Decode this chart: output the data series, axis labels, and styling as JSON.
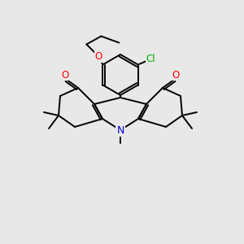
{
  "bg_color": "#e8e8e8",
  "atom_colors": {
    "O": "#ff0000",
    "N": "#0000cc",
    "Cl": "#00aa00",
    "C": "#000000"
  },
  "bond_color": "#000000",
  "bond_width": 1.4,
  "figsize": [
    3.0,
    3.0
  ],
  "dpi": 100,
  "scale": 1.0
}
